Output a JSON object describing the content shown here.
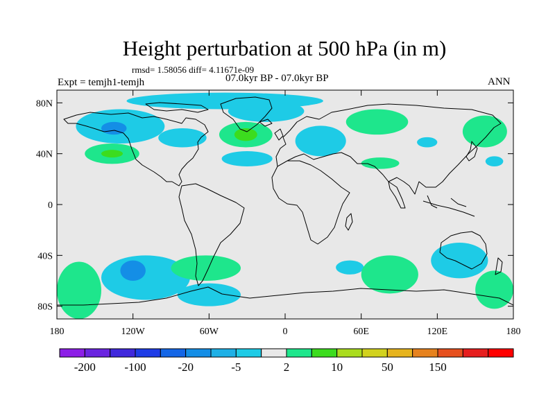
{
  "title": "Height perturbation at 500 hPa (in m)",
  "stats": "rmsd= 1.58056 diff= 4.11671e-09",
  "experiment": "Expt = temjh1-temjh",
  "period": "07.0kyr BP - 07.0kyr BP",
  "season": "ANN",
  "map": {
    "lat_ticks": [
      "80N",
      "40N",
      "0",
      "40S",
      "80S"
    ],
    "lon_ticks": [
      "180",
      "120W",
      "60W",
      "0",
      "60E",
      "120E",
      "180"
    ],
    "background": "#e8e8e8"
  },
  "colorbar": {
    "colors": [
      "#8c1ee6",
      "#6a24e0",
      "#4028dc",
      "#1e3ce6",
      "#1466e6",
      "#148ee6",
      "#1eb0e6",
      "#1ecbe6",
      "#e8e8e8",
      "#1ee68c",
      "#3cdc1e",
      "#aadc1e",
      "#d2d21e",
      "#e6b41e",
      "#e6821e",
      "#e6501e",
      "#e61e1e",
      "#ff0000"
    ],
    "labels": [
      "-200",
      "-100",
      "-20",
      "-5",
      "2",
      "10",
      "50",
      "150"
    ]
  },
  "chart_data": {
    "type": "heatmap",
    "projection": "cylindrical equidistant",
    "xlim": [
      -180,
      180
    ],
    "ylim": [
      -90,
      90
    ],
    "anomaly_regions": [
      {
        "lon": [
          -165,
          -95
        ],
        "lat": [
          48,
          75
        ],
        "value": -10
      },
      {
        "lon": [
          -145,
          -125
        ],
        "lat": [
          55,
          65
        ],
        "value": -20
      },
      {
        "lon": [
          -100,
          -62
        ],
        "lat": [
          45,
          60
        ],
        "value": -10
      },
      {
        "lon": [
          -45,
          15
        ],
        "lat": [
          65,
          82
        ],
        "value": -10
      },
      {
        "lon": [
          -125,
          30
        ],
        "lat": [
          75,
          88
        ],
        "value": -10
      },
      {
        "lon": [
          -52,
          -10
        ],
        "lat": [
          45,
          65
        ],
        "value": 5
      },
      {
        "lon": [
          -40,
          -22
        ],
        "lat": [
          50,
          60
        ],
        "value": 10
      },
      {
        "lon": [
          -50,
          -10
        ],
        "lat": [
          30,
          42
        ],
        "value": -10
      },
      {
        "lon": [
          -158,
          -115
        ],
        "lat": [
          32,
          48
        ],
        "value": 5
      },
      {
        "lon": [
          -145,
          -128
        ],
        "lat": [
          37,
          43
        ],
        "value": 10
      },
      {
        "lon": [
          8,
          48
        ],
        "lat": [
          38,
          62
        ],
        "value": -10
      },
      {
        "lon": [
          48,
          97
        ],
        "lat": [
          55,
          75
        ],
        "value": 5
      },
      {
        "lon": [
          104,
          120
        ],
        "lat": [
          45,
          53
        ],
        "value": -10
      },
      {
        "lon": [
          140,
          175
        ],
        "lat": [
          45,
          70
        ],
        "value": 5
      },
      {
        "lon": [
          158,
          172
        ],
        "lat": [
          30,
          38
        ],
        "value": -10
      },
      {
        "lon": [
          60,
          90
        ],
        "lat": [
          28,
          37
        ],
        "value": 5
      },
      {
        "lon": [
          -145,
          -75
        ],
        "lat": [
          -75,
          -40
        ],
        "value": -10
      },
      {
        "lon": [
          -130,
          -110
        ],
        "lat": [
          -60,
          -44
        ],
        "value": -20
      },
      {
        "lon": [
          -85,
          -35
        ],
        "lat": [
          -80,
          -62
        ],
        "value": -10
      },
      {
        "lon": [
          -90,
          -35
        ],
        "lat": [
          -60,
          -40
        ],
        "value": 5
      },
      {
        "lon": [
          40,
          62
        ],
        "lat": [
          -55,
          -44
        ],
        "value": -10
      },
      {
        "lon": [
          60,
          105
        ],
        "lat": [
          -70,
          -40
        ],
        "value": 5
      },
      {
        "lon": [
          115,
          160
        ],
        "lat": [
          -58,
          -30
        ],
        "value": -10
      },
      {
        "lon": [
          -180,
          -145
        ],
        "lat": [
          -90,
          -45
        ],
        "value": 5
      },
      {
        "lon": [
          150,
          180
        ],
        "lat": [
          -82,
          -52
        ],
        "value": 5
      }
    ]
  }
}
